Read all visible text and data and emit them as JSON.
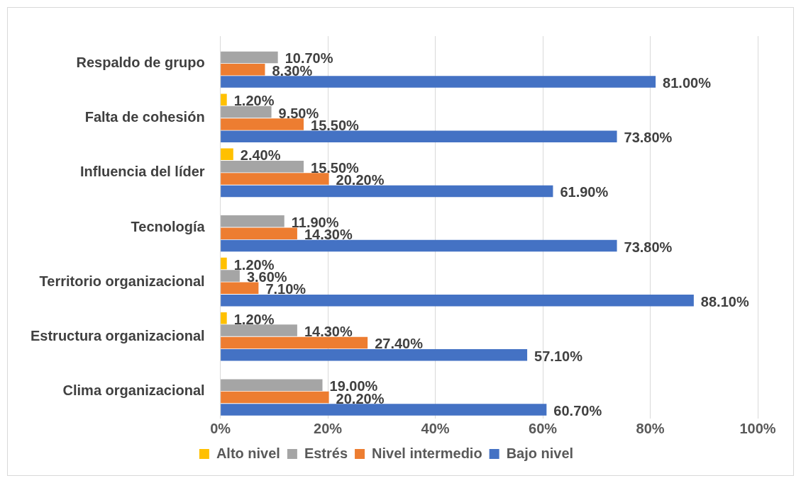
{
  "chart_data": {
    "type": "bar",
    "orientation": "horizontal",
    "categories": [
      "Respaldo de grupo",
      "Falta de cohesión",
      "Influencia del líder",
      "Tecnología",
      "Territorio organizacional",
      "Estructura organizacional",
      "Clima organizacional"
    ],
    "series": [
      {
        "name": "Alto nivel",
        "color": "#ffc000",
        "values": [
          0,
          1.2,
          2.4,
          0,
          1.2,
          1.2,
          0
        ],
        "value_labels": [
          null,
          "1.20%",
          "2.40%",
          null,
          "1.20%",
          "1.20%",
          null
        ]
      },
      {
        "name": "Estrés",
        "color": "#a5a5a5",
        "values": [
          10.7,
          9.5,
          15.5,
          11.9,
          3.6,
          14.3,
          19.0
        ],
        "value_labels": [
          "10.70%",
          "9.50%",
          "15.50%",
          "11.90%",
          "3.60%",
          "14.30%",
          "19.00%"
        ]
      },
      {
        "name": "Nivel intermedio",
        "color": "#ed7d31",
        "values": [
          8.3,
          15.5,
          20.2,
          14.3,
          7.1,
          27.4,
          20.2
        ],
        "value_labels": [
          "8.30%",
          "15.50%",
          "20.20%",
          "14.30%",
          "7.10%",
          "27.40%",
          "20.20%"
        ]
      },
      {
        "name": "Bajo nivel",
        "color": "#4472c4",
        "values": [
          81.0,
          73.8,
          61.9,
          73.8,
          88.1,
          57.1,
          60.7
        ],
        "value_labels": [
          "81.00%",
          "73.80%",
          "61.90%",
          "73.80%",
          "88.10%",
          "57.10%",
          "60.70%"
        ]
      }
    ],
    "xlim": [
      0,
      100
    ],
    "xticks": [
      {
        "value": 0,
        "label": "0%"
      },
      {
        "value": 20,
        "label": "20%"
      },
      {
        "value": 40,
        "label": "40%"
      },
      {
        "value": 60,
        "label": "60%"
      },
      {
        "value": 80,
        "label": "80%"
      },
      {
        "value": 100,
        "label": "100%"
      }
    ],
    "grid": "x",
    "legend": "bottom"
  }
}
